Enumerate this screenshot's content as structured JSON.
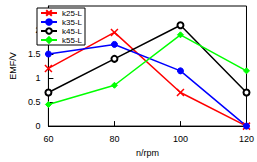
{
  "chart_data": {
    "type": "line",
    "x_label": "n/rpm",
    "y_label": "EMF/V",
    "x": [
      60,
      80,
      100,
      120
    ],
    "series": [
      {
        "name": "k25-L",
        "color": "#ff0000",
        "marker": "x",
        "values": [
          1.2,
          1.95,
          0.7,
          0
        ]
      },
      {
        "name": "k35-L",
        "color": "#0000ff",
        "marker": "circle",
        "values": [
          1.5,
          1.7,
          1.15,
          0
        ]
      },
      {
        "name": "k45-L",
        "color": "#000000",
        "marker": "open_circle",
        "values": [
          0.7,
          1.4,
          2.1,
          0.7
        ]
      },
      {
        "name": "k55-L",
        "color": "#00ff00",
        "marker": "diamond",
        "values": [
          0.45,
          0.85,
          1.9,
          1.15
        ]
      }
    ],
    "xlim": [
      60,
      120
    ],
    "xticks": [
      60,
      80,
      100,
      120
    ],
    "ylim": [
      0,
      2.5
    ],
    "yticks": [
      0,
      0.5,
      1,
      1.5,
      2
    ],
    "grid": false,
    "legend": "top-left"
  }
}
